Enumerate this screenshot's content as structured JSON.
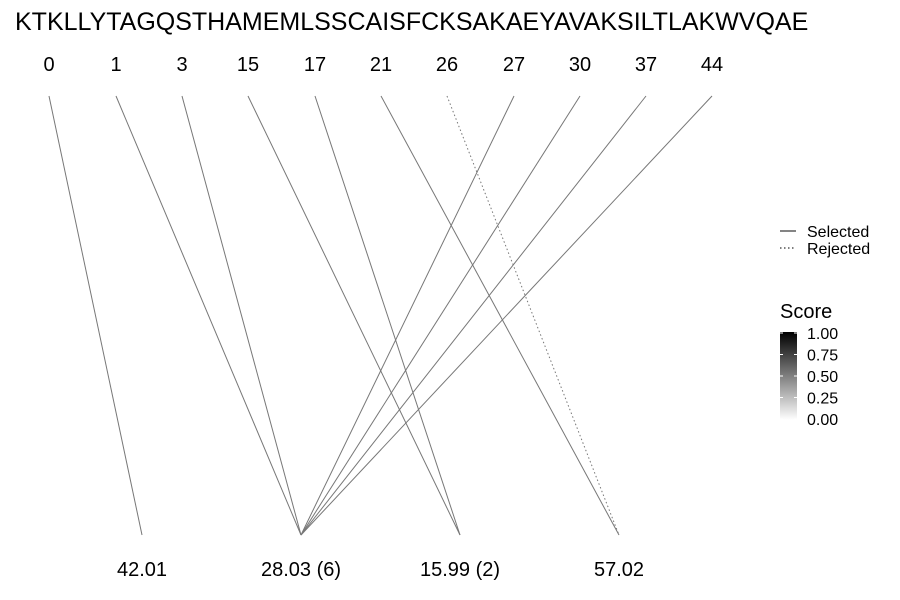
{
  "sequence": "KTKLLYTAGQSTHAMEMLSSCAISFCKSAKAEYAVAKSILTLAKWVQAE",
  "positions": [
    "0",
    "1",
    "3",
    "15",
    "17",
    "21",
    "26",
    "27",
    "30",
    "37",
    "44"
  ],
  "fragments": [
    "42.01",
    "28.03 (6)",
    "15.99 (2)",
    "57.02"
  ],
  "links": [
    {
      "from": 0,
      "to": 0,
      "status": "selected"
    },
    {
      "from": 1,
      "to": 1,
      "status": "selected"
    },
    {
      "from": 2,
      "to": 1,
      "status": "selected"
    },
    {
      "from": 3,
      "to": 2,
      "status": "selected"
    },
    {
      "from": 4,
      "to": 2,
      "status": "selected"
    },
    {
      "from": 5,
      "to": 3,
      "status": "selected"
    },
    {
      "from": 6,
      "to": 3,
      "status": "rejected"
    },
    {
      "from": 7,
      "to": 1,
      "status": "selected"
    },
    {
      "from": 8,
      "to": 1,
      "status": "selected"
    },
    {
      "from": 9,
      "to": 1,
      "status": "selected"
    },
    {
      "from": 10,
      "to": 1,
      "status": "selected"
    }
  ],
  "legend": {
    "selected_label": "Selected",
    "rejected_label": "Rejected",
    "score_title": "Score",
    "score_ticks": [
      "1.00",
      "0.75",
      "0.50",
      "0.25",
      "0.00"
    ]
  },
  "colors": {
    "line": "#777777",
    "score_high": "#000000",
    "score_low": "#ffffff"
  }
}
